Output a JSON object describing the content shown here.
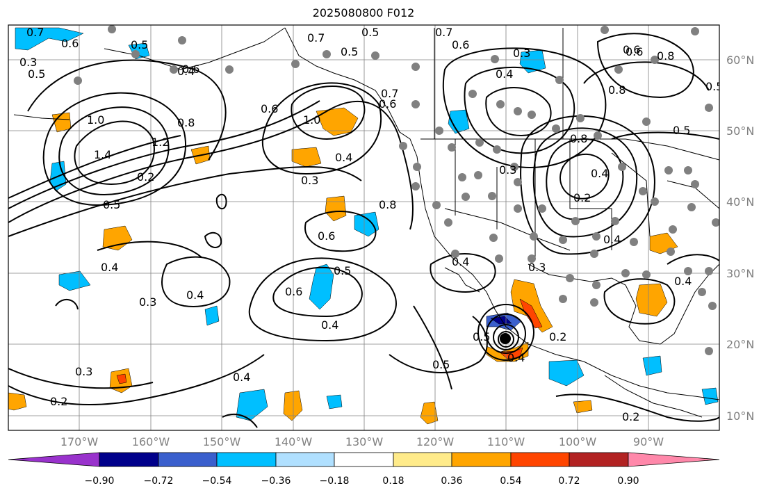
{
  "title": "2025080800 F012",
  "map": {
    "lon_labels": [
      "170°W",
      "160°W",
      "150°W",
      "140°W",
      "130°W",
      "120°W",
      "110°W",
      "100°W",
      "90°W"
    ],
    "lat_labels": [
      "60°N",
      "50°N",
      "40°N",
      "30°N",
      "20°N",
      "10°N"
    ],
    "contour_labels": [
      "0.7",
      "0.6",
      "0.5",
      "0.5",
      "0.5",
      "0.7",
      "0.5",
      "0.7",
      "0.6",
      "0.3",
      "0.6",
      "0.8",
      "0.4",
      "0.4",
      "0.6",
      "1.0",
      "0.8",
      "1.2",
      "1.4",
      "0.8",
      "1.0",
      "0.6",
      "0.4",
      "0.3",
      "0.6",
      "0.8",
      "0.7",
      "0.5",
      "0.3",
      "0.4",
      "0.3",
      "0.4",
      "0.6",
      "0.5",
      "0.4",
      "0.3",
      "0.2",
      "0.3",
      "0.6",
      "0.5",
      "0.4",
      "0.4",
      "0.5",
      "0.4",
      "0.2",
      "0.2",
      "0.4",
      "0.2",
      "0.5",
      "0.3",
      "0.4",
      "0.2",
      "0.4",
      "0.8",
      "0.5",
      "0.6"
    ],
    "colors": {
      "land_outline": "#000000",
      "contour": "#000000",
      "grid": "#808080",
      "station_dot": "#808080"
    },
    "storm_marker": "tropical-cyclone-center"
  },
  "colorbar": {
    "ticks": [
      "−0.90",
      "−0.72",
      "−0.54",
      "−0.36",
      "−0.18",
      "0.18",
      "0.36",
      "0.54",
      "0.72",
      "0.90"
    ],
    "colors": [
      "#9932cc",
      "#00008b",
      "#3a5fcd",
      "#00bfff",
      "#b0e0ff",
      "#ffffff",
      "#ffeb8a",
      "#ffa500",
      "#ff4500",
      "#b22222",
      "#ff88aa"
    ]
  }
}
